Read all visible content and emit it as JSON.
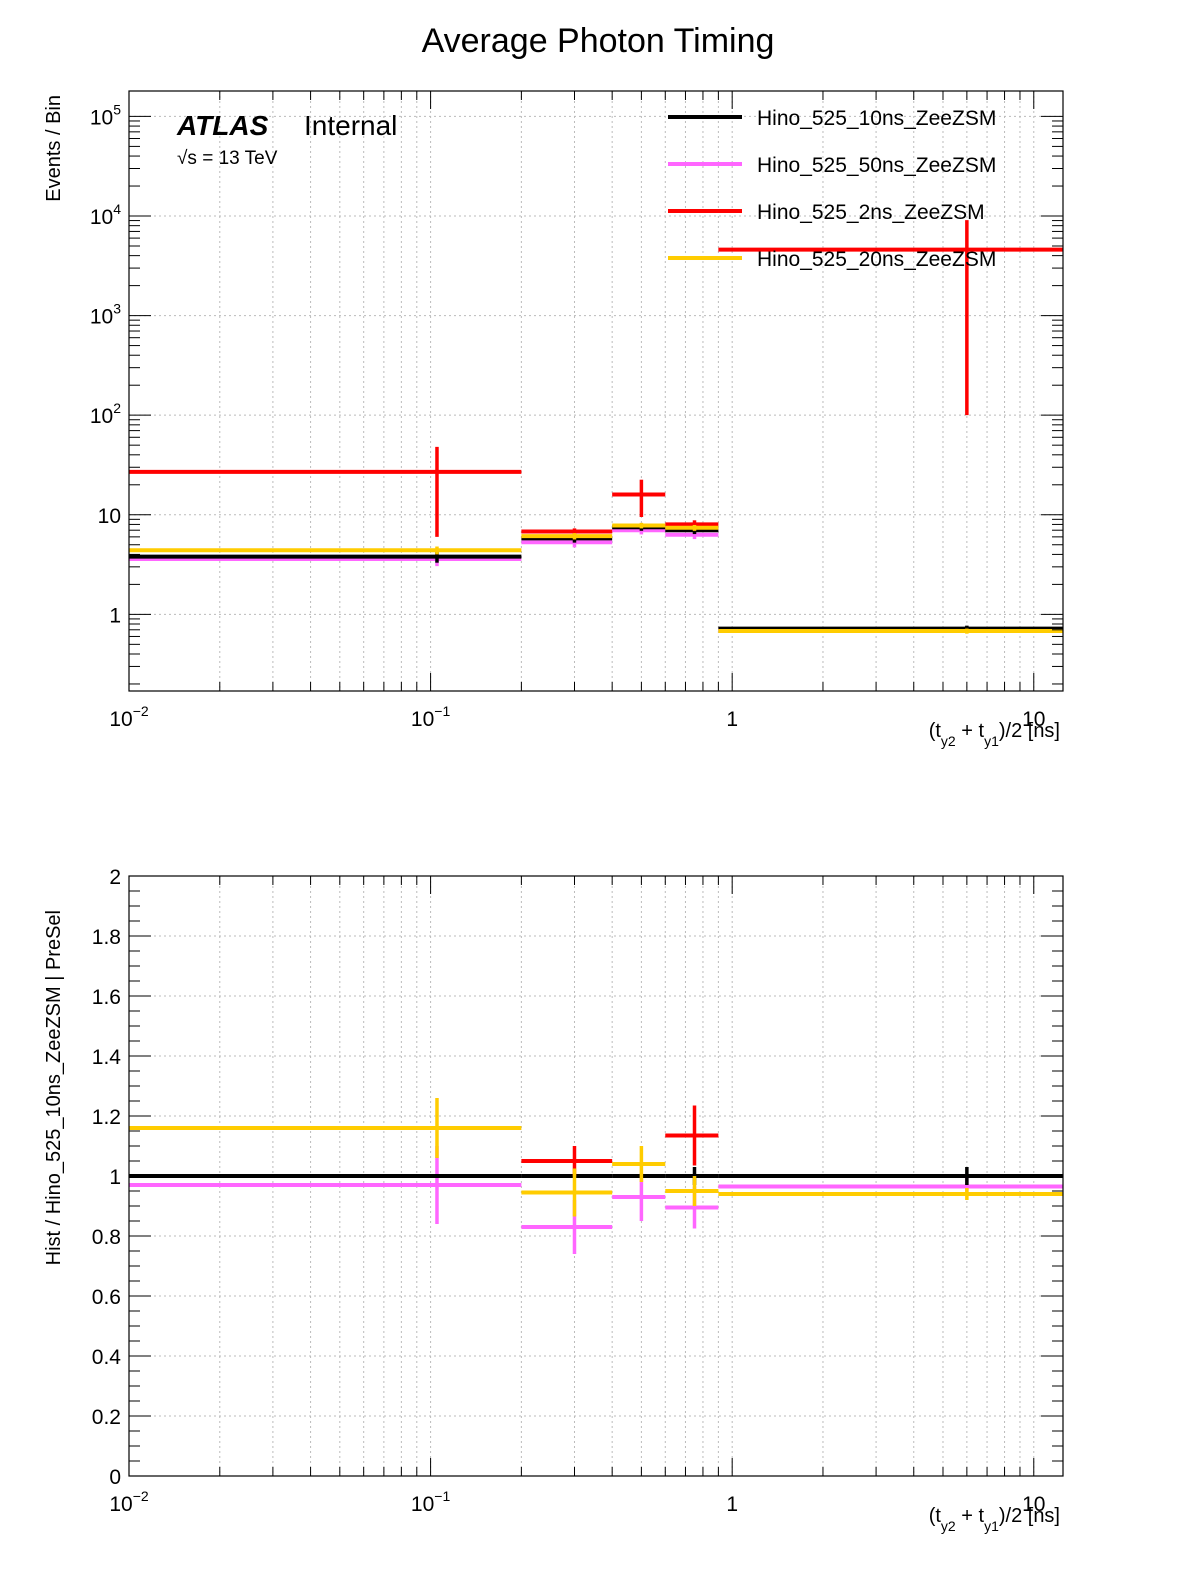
{
  "title": "Average Photon Timing",
  "atlas": {
    "label": "ATLAS",
    "status": "Internal",
    "energy": "√s = 13 TeV"
  },
  "colors": {
    "Hino_525_10ns_ZeeZSM": "#000000",
    "Hino_525_50ns_ZeeZSM": "#ff66ff",
    "Hino_525_2ns_ZeeZSM": "#ff0000",
    "Hino_525_20ns_ZeeZSM": "#ffcc00"
  },
  "chart_data": [
    {
      "type": "histogram",
      "ylabel": "Events / Bin",
      "xlabel": "(t_{y2} + t_{y1})/2 [ns]",
      "xlabel_parts": {
        "pre": "(t",
        "sub1": "y2",
        "mid": " + t",
        "sub2": "y1",
        "post": ")/2 [ns]"
      },
      "xscale": "log",
      "yscale": "log",
      "xlim": [
        0.01,
        12.5
      ],
      "ylim": [
        0.17,
        180000
      ],
      "xticks": [
        {
          "base": "10",
          "exp": "−2"
        },
        {
          "base": "10",
          "exp": "−1"
        },
        {
          "base": "1",
          "exp": ""
        },
        {
          "base": "10",
          "exp": ""
        }
      ],
      "yticks": [
        {
          "base": "1",
          "exp": ""
        },
        {
          "base": "10",
          "exp": ""
        },
        {
          "base": "10",
          "exp": "2"
        },
        {
          "base": "10",
          "exp": "3"
        },
        {
          "base": "10",
          "exp": "4"
        },
        {
          "base": "10",
          "exp": "5"
        }
      ],
      "legend_position": "top-right",
      "bin_edges": [
        0.01,
        0.2,
        0.4,
        0.6,
        0.9,
        12.5
      ],
      "bin_centers": [
        0.105,
        0.3,
        0.5,
        0.75,
        6.0
      ],
      "series": [
        {
          "name": "Hino_525_10ns_ZeeZSM",
          "values": [
            3.8,
            5.8,
            7.5,
            7.0,
            0.72
          ],
          "errors": [
            0.5,
            0.55,
            0.6,
            0.6,
            0.05
          ]
        },
        {
          "name": "Hino_525_50ns_ZeeZSM",
          "values": [
            3.6,
            5.3,
            7.0,
            6.3,
            0.7
          ],
          "errors": [
            0.55,
            0.6,
            0.65,
            0.6,
            0.05
          ]
        },
        {
          "name": "Hino_525_2ns_ZeeZSM",
          "values": [
            27,
            6.8,
            16,
            8.0,
            4600
          ],
          "errors": [
            21,
            0.5,
            6.5,
            0.8,
            4500
          ]
        },
        {
          "name": "Hino_525_20ns_ZeeZSM",
          "values": [
            4.4,
            6.1,
            7.8,
            7.4,
            0.68
          ],
          "errors": [
            0.4,
            0.45,
            0.5,
            0.5,
            0.04
          ]
        }
      ]
    },
    {
      "type": "ratio",
      "ylabel": "Hist / Hino_525_10ns_ZeeZSM | PreSel",
      "xlabel": "(t_{y2} + t_{y1})/2 [ns]",
      "xscale": "log",
      "xlim": [
        0.01,
        12.5
      ],
      "ylim": [
        0,
        2
      ],
      "yticks": [
        "0",
        "0.2",
        "0.4",
        "0.6",
        "0.8",
        "1",
        "1.2",
        "1.4",
        "1.6",
        "1.8",
        "2"
      ],
      "bin_edges": [
        0.01,
        0.2,
        0.4,
        0.6,
        0.9,
        12.5
      ],
      "bin_centers": [
        0.105,
        0.3,
        0.5,
        0.75,
        6.0
      ],
      "series": [
        {
          "name": "Hino_525_10ns_ZeeZSM",
          "values": [
            1.0,
            1.0,
            1.0,
            1.0,
            1.0
          ],
          "errors": [
            0.0,
            0.0,
            0.0,
            0.03,
            0.03
          ]
        },
        {
          "name": "Hino_525_50ns_ZeeZSM",
          "values": [
            0.97,
            0.83,
            0.93,
            0.895,
            0.965
          ],
          "errors": [
            0.13,
            0.09,
            0.08,
            0.07,
            0.03
          ]
        },
        {
          "name": "Hino_525_2ns_ZeeZSM",
          "values": [
            null,
            1.05,
            null,
            1.135,
            null
          ],
          "errors": [
            0,
            0.05,
            0,
            0.1,
            0
          ]
        },
        {
          "name": "Hino_525_20ns_ZeeZSM",
          "values": [
            1.16,
            0.945,
            1.04,
            0.95,
            0.94
          ],
          "errors": [
            0.1,
            0.08,
            0.06,
            0.05,
            0.02
          ]
        }
      ]
    }
  ]
}
